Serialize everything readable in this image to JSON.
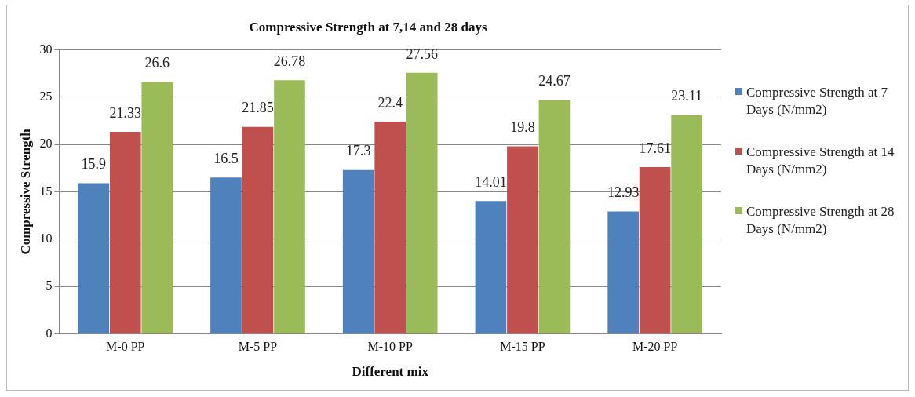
{
  "chart_data": {
    "type": "bar",
    "title": "Compressive Strength at 7,14 and 28 days",
    "xlabel": "Different mix",
    "ylabel": "Compressive Strength",
    "categories": [
      "M-0 PP",
      "M-5 PP",
      "M-10 PP",
      "M-15 PP",
      "M-20 PP"
    ],
    "series": [
      {
        "name": "Compressive Strength at 7  Days (N/mm2)",
        "color": "#4f81bd",
        "values": [
          15.9,
          16.5,
          17.3,
          14.01,
          12.93
        ]
      },
      {
        "name": "Compressive Strength at 14  Days (N/mm2)",
        "color": "#c0504d",
        "values": [
          21.33,
          21.85,
          22.4,
          19.8,
          17.61
        ]
      },
      {
        "name": "Compressive Strength at 28  Days (N/mm2)",
        "color": "#9bbb59",
        "values": [
          26.6,
          26.78,
          27.56,
          24.67,
          23.11
        ]
      }
    ],
    "ylim": [
      0,
      30
    ],
    "yticks": [
      0,
      5,
      10,
      15,
      20,
      25,
      30
    ],
    "grid": "y",
    "legend": "right",
    "data_labels": true
  }
}
